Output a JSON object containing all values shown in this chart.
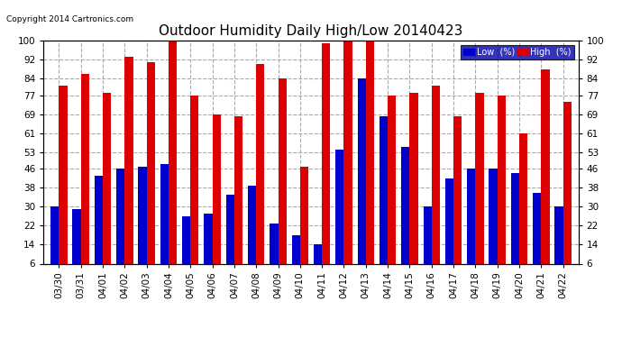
{
  "title": "Outdoor Humidity Daily High/Low 20140423",
  "copyright": "Copyright 2014 Cartronics.com",
  "legend_low": "Low  (%)",
  "legend_high": "High  (%)",
  "dates": [
    "03/30",
    "03/31",
    "04/01",
    "04/02",
    "04/03",
    "04/04",
    "04/05",
    "04/06",
    "04/07",
    "04/08",
    "04/09",
    "04/10",
    "04/11",
    "04/12",
    "04/13",
    "04/14",
    "04/15",
    "04/16",
    "04/17",
    "04/18",
    "04/19",
    "04/20",
    "04/21",
    "04/22"
  ],
  "high": [
    81,
    86,
    78,
    93,
    91,
    100,
    77,
    69,
    68,
    90,
    84,
    47,
    99,
    100,
    100,
    77,
    78,
    81,
    68,
    78,
    77,
    61,
    88,
    74
  ],
  "low": [
    30,
    29,
    43,
    46,
    47,
    48,
    26,
    27,
    35,
    39,
    23,
    18,
    14,
    54,
    84,
    68,
    55,
    30,
    42,
    46,
    46,
    44,
    36,
    30
  ],
  "ylim": [
    6,
    100
  ],
  "yticks": [
    6,
    14,
    22,
    30,
    38,
    46,
    53,
    61,
    69,
    77,
    84,
    92,
    100
  ],
  "bar_width": 0.38,
  "low_color": "#0000cc",
  "high_color": "#dd0000",
  "bg_color": "#ffffff",
  "grid_color": "#aaaaaa",
  "title_fontsize": 11,
  "tick_fontsize": 7.5,
  "label_fontsize": 8,
  "legend_bg": "#0000aa",
  "legend_fontsize": 7
}
